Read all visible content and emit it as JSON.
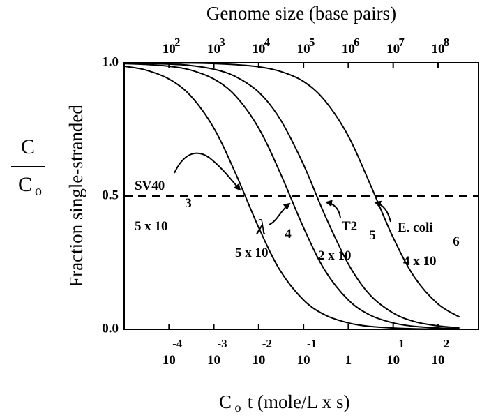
{
  "chart_data": {
    "type": "line",
    "title": "Genome size (base pairs)",
    "x_label": {
      "base": "C",
      "subscript": "o",
      "rest": " t (mole/L x s)"
    },
    "y_label": "Fraction single-stranded",
    "y_label_fraction": {
      "numerator": "C",
      "denominator": "C",
      "subscript": "o"
    },
    "log_x": true,
    "xlim": [
      1e-05,
      800
    ],
    "x2lim": [
      10,
      800000000
    ],
    "ylim": [
      0,
      1
    ],
    "yticks": [
      {
        "value": 0,
        "label": "0.0"
      },
      0.5,
      {
        "value": 1,
        "label": "1.0"
      }
    ],
    "xticks": [
      {
        "value": 0.0001,
        "label": "10",
        "exponent": "-4"
      },
      {
        "value": 0.001,
        "label": "10",
        "exponent": "-3"
      },
      {
        "value": 0.01,
        "label": "10",
        "exponent": "-2"
      },
      {
        "value": 0.1,
        "label": "10",
        "exponent": "-1"
      },
      1,
      {
        "value": 10,
        "label": "10",
        "exponent": "1"
      },
      {
        "value": 100,
        "label": "10",
        "exponent": "2"
      }
    ],
    "x2ticks": [
      {
        "value": 100,
        "label": "10",
        "exponent": "2"
      },
      {
        "value": 1000,
        "label": "10",
        "exponent": "3"
      },
      {
        "value": 10000,
        "label": "10",
        "exponent": "4"
      },
      {
        "value": 100000,
        "label": "10",
        "exponent": "5"
      },
      {
        "value": 1000000,
        "label": "10",
        "exponent": "6"
      },
      {
        "value": 10000000,
        "label": "10",
        "exponent": "7"
      },
      {
        "value": 100000000,
        "label": "10",
        "exponent": "8"
      }
    ],
    "reference_line": 0.5,
    "x": [
      1e-05,
      3e-05,
      0.0001,
      0.0003,
      0.001,
      0.003,
      0.01,
      0.03,
      0.1,
      0.3,
      1,
      3,
      10,
      30,
      100,
      300
    ],
    "series": [
      {
        "name": "SV40",
        "color": "#000000",
        "values": [
          0.987,
          0.973,
          0.939,
          0.877,
          0.755,
          0.588,
          0.382,
          0.221,
          0.11,
          0.054,
          0.024,
          0.011,
          0.005,
          0.002,
          0.001,
          0.0005
        ]
      },
      {
        "name": "λ",
        "color": "#000000",
        "values": [
          0.997,
          0.994,
          0.987,
          0.973,
          0.939,
          0.877,
          0.755,
          0.588,
          0.382,
          0.221,
          0.11,
          0.054,
          0.024,
          0.011,
          0.005,
          0.002
        ]
      },
      {
        "name": "T2",
        "color": "#000000",
        "values": [
          0.999,
          0.998,
          0.995,
          0.99,
          0.976,
          0.949,
          0.89,
          0.789,
          0.618,
          0.428,
          0.245,
          0.13,
          0.061,
          0.029,
          0.013,
          0.006
        ]
      },
      {
        "name": "E. coli",
        "color": "#000000",
        "values": [
          1.0,
          1.0,
          0.999,
          0.999,
          0.997,
          0.993,
          0.985,
          0.968,
          0.93,
          0.858,
          0.725,
          0.548,
          0.344,
          0.195,
          0.095,
          0.046
        ]
      }
    ],
    "annotations": [
      {
        "size": "5 x 10",
        "exponent": "3"
      },
      {
        "size": "5 x 10",
        "exponent": "4"
      },
      {
        "size": "2 x 10",
        "exponent": "5"
      },
      {
        "size": "4 x 10",
        "exponent": "6"
      }
    ]
  }
}
